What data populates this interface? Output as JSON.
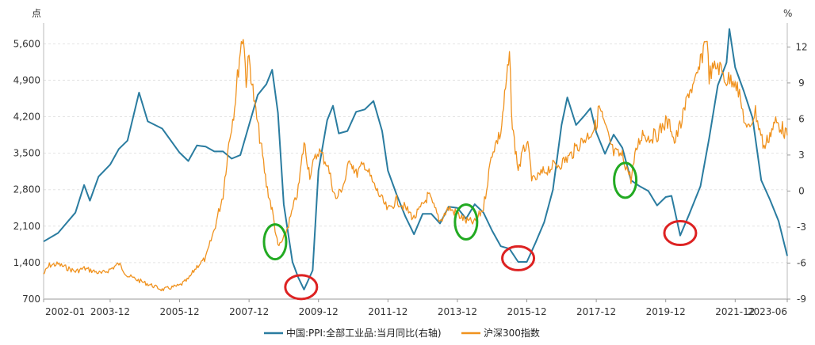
{
  "chart_data": {
    "type": "line",
    "left_unit": "点",
    "right_unit": "%",
    "x_range": [
      "2002-01",
      "2023-06"
    ],
    "x_ticks": [
      "2002-01",
      "2003-12",
      "2005-12",
      "2007-12",
      "2009-12",
      "2011-12",
      "2013-12",
      "2015-12",
      "2017-12",
      "2019-12",
      "2021-12",
      "2023-06"
    ],
    "y_left": {
      "range": [
        700,
        6000
      ],
      "ticks": [
        "700",
        "1,400",
        "2,100",
        "2,800",
        "3,500",
        "4,200",
        "4,900",
        "5,600"
      ],
      "tick_values": [
        700,
        1400,
        2100,
        2800,
        3500,
        4200,
        4900,
        5600
      ]
    },
    "y_right": {
      "range": [
        -9,
        14
      ],
      "ticks": [
        "-9",
        "-6",
        "-3",
        "0",
        "3",
        "6",
        "9",
        "12"
      ],
      "tick_values": [
        -9,
        -6,
        -3,
        0,
        3,
        6,
        9,
        12
      ]
    },
    "grid": true,
    "legend_position": "bottom-center",
    "series": [
      {
        "name": "中国:PPI:全部工业品:当月同比(右轴)",
        "axis": "right",
        "color": "#2a7ca0",
        "points": [
          [
            "2002-01",
            -4.2
          ],
          [
            "2002-06",
            -3.5
          ],
          [
            "2002-12",
            -1.8
          ],
          [
            "2003-03",
            0.5
          ],
          [
            "2003-05",
            -0.8
          ],
          [
            "2003-08",
            1.2
          ],
          [
            "2003-12",
            2.2
          ],
          [
            "2004-03",
            3.5
          ],
          [
            "2004-06",
            4.2
          ],
          [
            "2004-10",
            8.2
          ],
          [
            "2005-01",
            5.8
          ],
          [
            "2005-06",
            5.2
          ],
          [
            "2005-12",
            3.2
          ],
          [
            "2006-03",
            2.5
          ],
          [
            "2006-06",
            3.8
          ],
          [
            "2006-09",
            3.7
          ],
          [
            "2006-12",
            3.3
          ],
          [
            "2007-03",
            3.3
          ],
          [
            "2007-06",
            2.7
          ],
          [
            "2007-09",
            3.0
          ],
          [
            "2007-12",
            5.5
          ],
          [
            "2008-03",
            8.0
          ],
          [
            "2008-06",
            8.9
          ],
          [
            "2008-08",
            10.1
          ],
          [
            "2008-10",
            6.5
          ],
          [
            "2008-12",
            -1.1
          ],
          [
            "2009-03",
            -5.9
          ],
          [
            "2009-05",
            -7.2
          ],
          [
            "2009-07",
            -8.2
          ],
          [
            "2009-10",
            -6.6
          ],
          [
            "2009-12",
            1.7
          ],
          [
            "2010-03",
            5.9
          ],
          [
            "2010-05",
            7.1
          ],
          [
            "2010-07",
            4.8
          ],
          [
            "2010-10",
            5.0
          ],
          [
            "2011-01",
            6.6
          ],
          [
            "2011-04",
            6.8
          ],
          [
            "2011-07",
            7.5
          ],
          [
            "2011-10",
            5.0
          ],
          [
            "2011-12",
            1.7
          ],
          [
            "2012-03",
            -0.3
          ],
          [
            "2012-06",
            -2.1
          ],
          [
            "2012-09",
            -3.6
          ],
          [
            "2012-12",
            -1.9
          ],
          [
            "2013-03",
            -1.9
          ],
          [
            "2013-06",
            -2.7
          ],
          [
            "2013-09",
            -1.3
          ],
          [
            "2013-12",
            -1.4
          ],
          [
            "2014-03",
            -2.3
          ],
          [
            "2014-06",
            -1.1
          ],
          [
            "2014-09",
            -1.8
          ],
          [
            "2014-12",
            -3.3
          ],
          [
            "2015-03",
            -4.6
          ],
          [
            "2015-06",
            -4.8
          ],
          [
            "2015-09",
            -5.9
          ],
          [
            "2015-12",
            -5.9
          ],
          [
            "2016-03",
            -4.3
          ],
          [
            "2016-06",
            -2.6
          ],
          [
            "2016-09",
            0.1
          ],
          [
            "2016-12",
            5.5
          ],
          [
            "2017-02",
            7.8
          ],
          [
            "2017-05",
            5.5
          ],
          [
            "2017-08",
            6.3
          ],
          [
            "2017-10",
            6.9
          ],
          [
            "2017-12",
            4.9
          ],
          [
            "2018-03",
            3.1
          ],
          [
            "2018-06",
            4.7
          ],
          [
            "2018-09",
            3.6
          ],
          [
            "2018-12",
            0.9
          ],
          [
            "2019-03",
            0.4
          ],
          [
            "2019-06",
            0.0
          ],
          [
            "2019-09",
            -1.2
          ],
          [
            "2019-12",
            -0.5
          ],
          [
            "2020-02",
            -0.4
          ],
          [
            "2020-05",
            -3.7
          ],
          [
            "2020-08",
            -2.0
          ],
          [
            "2020-12",
            0.4
          ],
          [
            "2021-03",
            4.4
          ],
          [
            "2021-06",
            8.8
          ],
          [
            "2021-09",
            10.7
          ],
          [
            "2021-10",
            13.5
          ],
          [
            "2021-12",
            10.3
          ],
          [
            "2022-03",
            8.3
          ],
          [
            "2022-06",
            6.1
          ],
          [
            "2022-09",
            0.9
          ],
          [
            "2022-12",
            -0.7
          ],
          [
            "2023-03",
            -2.5
          ],
          [
            "2023-06",
            -5.4
          ]
        ]
      },
      {
        "name": "沪深300指数",
        "axis": "left",
        "color": "#f0921e",
        "points": [
          [
            "2002-01",
            1180
          ],
          [
            "2002-03",
            1350
          ],
          [
            "2002-06",
            1370
          ],
          [
            "2002-09",
            1300
          ],
          [
            "2002-12",
            1230
          ],
          [
            "2003-03",
            1290
          ],
          [
            "2003-06",
            1240
          ],
          [
            "2003-09",
            1190
          ],
          [
            "2003-12",
            1270
          ],
          [
            "2004-03",
            1380
          ],
          [
            "2004-06",
            1150
          ],
          [
            "2004-09",
            1080
          ],
          [
            "2004-12",
            1010
          ],
          [
            "2005-03",
            950
          ],
          [
            "2005-06",
            880
          ],
          [
            "2005-09",
            920
          ],
          [
            "2005-12",
            960
          ],
          [
            "2006-03",
            1080
          ],
          [
            "2006-06",
            1330
          ],
          [
            "2006-09",
            1480
          ],
          [
            "2006-12",
            2040
          ],
          [
            "2007-03",
            2700
          ],
          [
            "2007-05",
            3700
          ],
          [
            "2007-07",
            4400
          ],
          [
            "2007-09",
            5500
          ],
          [
            "2007-10",
            5800
          ],
          [
            "2007-11",
            4900
          ],
          [
            "2007-12",
            5330
          ],
          [
            "2008-02",
            4400
          ],
          [
            "2008-04",
            3700
          ],
          [
            "2008-06",
            2900
          ],
          [
            "2008-08",
            2400
          ],
          [
            "2008-10",
            1700
          ],
          [
            "2008-12",
            1850
          ],
          [
            "2009-02",
            2200
          ],
          [
            "2009-05",
            2800
          ],
          [
            "2009-07",
            3700
          ],
          [
            "2009-09",
            3100
          ],
          [
            "2009-12",
            3560
          ],
          [
            "2010-03",
            3300
          ],
          [
            "2010-06",
            2600
          ],
          [
            "2010-09",
            2950
          ],
          [
            "2010-11",
            3400
          ],
          [
            "2011-01",
            3100
          ],
          [
            "2011-04",
            3300
          ],
          [
            "2011-07",
            2900
          ],
          [
            "2011-09",
            2700
          ],
          [
            "2011-12",
            2400
          ],
          [
            "2012-03",
            2600
          ],
          [
            "2012-06",
            2450
          ],
          [
            "2012-09",
            2250
          ],
          [
            "2012-12",
            2500
          ],
          [
            "2013-02",
            2700
          ],
          [
            "2013-06",
            2200
          ],
          [
            "2013-09",
            2450
          ],
          [
            "2013-12",
            2330
          ],
          [
            "2014-03",
            2200
          ],
          [
            "2014-06",
            2170
          ],
          [
            "2014-09",
            2450
          ],
          [
            "2014-12",
            3530
          ],
          [
            "2015-03",
            3900
          ],
          [
            "2015-05",
            4900
          ],
          [
            "2015-06",
            5350
          ],
          [
            "2015-07",
            4000
          ],
          [
            "2015-09",
            3200
          ],
          [
            "2015-12",
            3730
          ],
          [
            "2016-02",
            2950
          ],
          [
            "2016-06",
            3150
          ],
          [
            "2016-09",
            3250
          ],
          [
            "2016-12",
            3310
          ],
          [
            "2017-03",
            3450
          ],
          [
            "2017-06",
            3670
          ],
          [
            "2017-09",
            3830
          ],
          [
            "2017-12",
            4030
          ],
          [
            "2018-01",
            4400
          ],
          [
            "2018-03",
            4000
          ],
          [
            "2018-06",
            3500
          ],
          [
            "2018-09",
            3450
          ],
          [
            "2018-12",
            3010
          ],
          [
            "2019-02",
            3600
          ],
          [
            "2019-04",
            3900
          ],
          [
            "2019-06",
            3800
          ],
          [
            "2019-09",
            3850
          ],
          [
            "2019-12",
            4100
          ],
          [
            "2020-02",
            4000
          ],
          [
            "2020-03",
            3700
          ],
          [
            "2020-06",
            4200
          ],
          [
            "2020-08",
            4700
          ],
          [
            "2020-10",
            4800
          ],
          [
            "2020-12",
            5210
          ],
          [
            "2021-02",
            5800
          ],
          [
            "2021-03",
            5000
          ],
          [
            "2021-06",
            5200
          ],
          [
            "2021-09",
            4900
          ],
          [
            "2021-12",
            4940
          ],
          [
            "2022-03",
            4200
          ],
          [
            "2022-04",
            3900
          ],
          [
            "2022-07",
            4300
          ],
          [
            "2022-10",
            3600
          ],
          [
            "2022-12",
            3870
          ],
          [
            "2023-02",
            4100
          ],
          [
            "2023-04",
            4000
          ],
          [
            "2023-06",
            3840
          ]
        ]
      }
    ]
  },
  "annotations": [
    {
      "shape": "ellipse",
      "color": "#22aa22",
      "at": {
        "date": "2008-09",
        "value": 1800
      },
      "value_axis": "left"
    },
    {
      "shape": "ellipse",
      "color": "#dd2222",
      "at": {
        "date": "2009-06",
        "value": -8.0
      },
      "value_axis": "right"
    },
    {
      "shape": "ellipse",
      "color": "#22aa22",
      "at": {
        "date": "2014-03",
        "value": 2180
      },
      "value_axis": "left"
    },
    {
      "shape": "ellipse",
      "color": "#dd2222",
      "at": {
        "date": "2015-09",
        "value": -5.6
      },
      "value_axis": "right"
    },
    {
      "shape": "ellipse",
      "color": "#22aa22",
      "at": {
        "date": "2018-10",
        "value": 2980
      },
      "value_axis": "left"
    },
    {
      "shape": "ellipse",
      "color": "#dd2222",
      "at": {
        "date": "2020-05",
        "value": -3.5
      },
      "value_axis": "right"
    }
  ]
}
